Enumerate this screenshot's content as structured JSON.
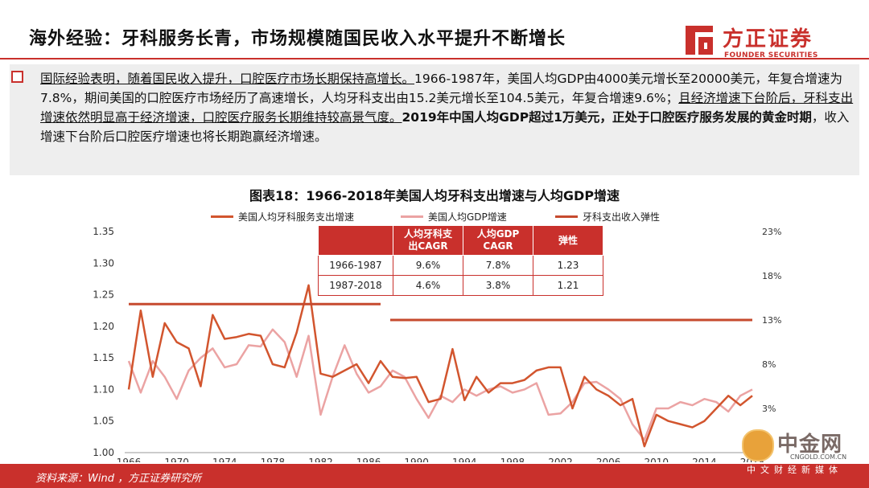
{
  "header": {
    "title": "海外经验：牙科服务长青，市场规模随国民收入水平提升不断增长",
    "logo_cn": "方正证券",
    "logo_en": "FOUNDER SECURITIES",
    "brand_color": "#c9302c"
  },
  "summary": {
    "segments": [
      {
        "text": "国际经验表明，随着国民收入提升，口腔医疗市场长期保持高增长。",
        "style": "underline"
      },
      {
        "text": "1966-1987年，美国人均GDP由4000美元增长至20000美元，年复合增速为7.8%，期间美国的口腔医疗市场经历了高速增长，人均牙科支出由15.2美元增长至104.5美元，年复合增速9.6%；",
        "style": "normal"
      },
      {
        "text": "且经济增速下台阶后，牙科支出增速依然明显高于经济增速，口腔医疗服务长期维持较高景气度。",
        "style": "underline"
      },
      {
        "text": "2019年中国人均GDP超过1万美元，正处于口腔医疗服务发展的黄金时期",
        "style": "bold"
      },
      {
        "text": "，收入增速下台阶后口腔医疗增速也将长期跑赢经济增速。",
        "style": "normal"
      }
    ]
  },
  "chart_data": {
    "type": "line",
    "title": "图表18：1966-2018年美国人均牙科支出增速与人均GDP增速",
    "x_ticks": [
      "1966",
      "1970",
      "1974",
      "1978",
      "1982",
      "1986",
      "1990",
      "1994",
      "1998",
      "2002",
      "2006",
      "2010",
      "2014",
      "2018"
    ],
    "y_left": {
      "min": 1.0,
      "max": 1.35,
      "ticks": [
        "1.35",
        "1.30",
        "1.25",
        "1.20",
        "1.15",
        "1.10",
        "1.05",
        "1.00"
      ]
    },
    "y_right": {
      "min": -2,
      "max": 23,
      "ticks": [
        "23%",
        "18%",
        "13%",
        "8%",
        "3%"
      ]
    },
    "series": [
      {
        "name": "美国人均牙科服务支出增速",
        "color": "#d2552e",
        "axis": "left",
        "x": [
          1966,
          1967,
          1968,
          1969,
          1970,
          1971,
          1972,
          1973,
          1974,
          1975,
          1976,
          1977,
          1978,
          1979,
          1980,
          1981,
          1982,
          1983,
          1984,
          1985,
          1986,
          1987,
          1988,
          1989,
          1990,
          1991,
          1992,
          1993,
          1994,
          1995,
          1996,
          1997,
          1998,
          1999,
          2000,
          2001,
          2002,
          2003,
          2004,
          2005,
          2006,
          2007,
          2008,
          2009,
          2010,
          2011,
          2012,
          2013,
          2014,
          2015,
          2016,
          2017,
          2018
        ],
        "values": [
          1.1,
          1.225,
          1.12,
          1.205,
          1.175,
          1.165,
          1.105,
          1.218,
          1.18,
          1.183,
          1.188,
          1.185,
          1.14,
          1.135,
          1.19,
          1.265,
          1.125,
          1.12,
          1.13,
          1.14,
          1.11,
          1.145,
          1.12,
          1.118,
          1.12,
          1.08,
          1.085,
          1.164,
          1.083,
          1.12,
          1.095,
          1.11,
          1.11,
          1.115,
          1.13,
          1.135,
          1.135,
          1.07,
          1.12,
          1.1,
          1.09,
          1.075,
          1.085,
          1.01,
          1.06,
          1.05,
          1.045,
          1.04,
          1.05,
          1.07,
          1.09,
          1.075,
          1.09
        ]
      },
      {
        "name": "美国人均GDP增速",
        "color": "#eba3a3",
        "axis": "left",
        "x": [
          1966,
          1967,
          1968,
          1969,
          1970,
          1971,
          1972,
          1973,
          1974,
          1975,
          1976,
          1977,
          1978,
          1979,
          1980,
          1981,
          1982,
          1983,
          1984,
          1985,
          1986,
          1987,
          1988,
          1989,
          1990,
          1991,
          1992,
          1993,
          1994,
          1995,
          1996,
          1997,
          1998,
          1999,
          2000,
          2001,
          2002,
          2003,
          2004,
          2005,
          2006,
          2007,
          2008,
          2009,
          2010,
          2011,
          2012,
          2013,
          2014,
          2015,
          2016,
          2017,
          2018
        ],
        "values": [
          1.145,
          1.095,
          1.145,
          1.12,
          1.085,
          1.13,
          1.15,
          1.165,
          1.135,
          1.14,
          1.17,
          1.168,
          1.195,
          1.175,
          1.12,
          1.185,
          1.06,
          1.12,
          1.17,
          1.125,
          1.095,
          1.105,
          1.13,
          1.12,
          1.085,
          1.055,
          1.09,
          1.08,
          1.1,
          1.09,
          1.1,
          1.105,
          1.095,
          1.1,
          1.11,
          1.06,
          1.062,
          1.08,
          1.11,
          1.112,
          1.1,
          1.085,
          1.045,
          1.02,
          1.07,
          1.07,
          1.08,
          1.075,
          1.085,
          1.08,
          1.065,
          1.09,
          1.1
        ]
      },
      {
        "name": "牙科支出收入弹性",
        "color": "#c64a2e",
        "axis": "right",
        "segments": [
          {
            "from": 1966,
            "to": 1987,
            "value": 14.8
          },
          {
            "from": 1987,
            "to": 2018,
            "value": 13.0
          }
        ]
      }
    ],
    "table": {
      "headers": [
        "",
        "人均牙科支\n出CAGR",
        "人均GDP\nCAGR",
        "弹性"
      ],
      "rows": [
        [
          "1966-1987",
          "9.6%",
          "7.8%",
          "1.23"
        ],
        [
          "1987-2018",
          "4.6%",
          "3.8%",
          "1.21"
        ]
      ]
    }
  },
  "footer": {
    "source": "资料来源：Wind ，方正证券研究所"
  },
  "watermark": {
    "cn": "中金网",
    "url": "CNGOLD.COM.CN",
    "sub": "中文财经新媒体"
  }
}
